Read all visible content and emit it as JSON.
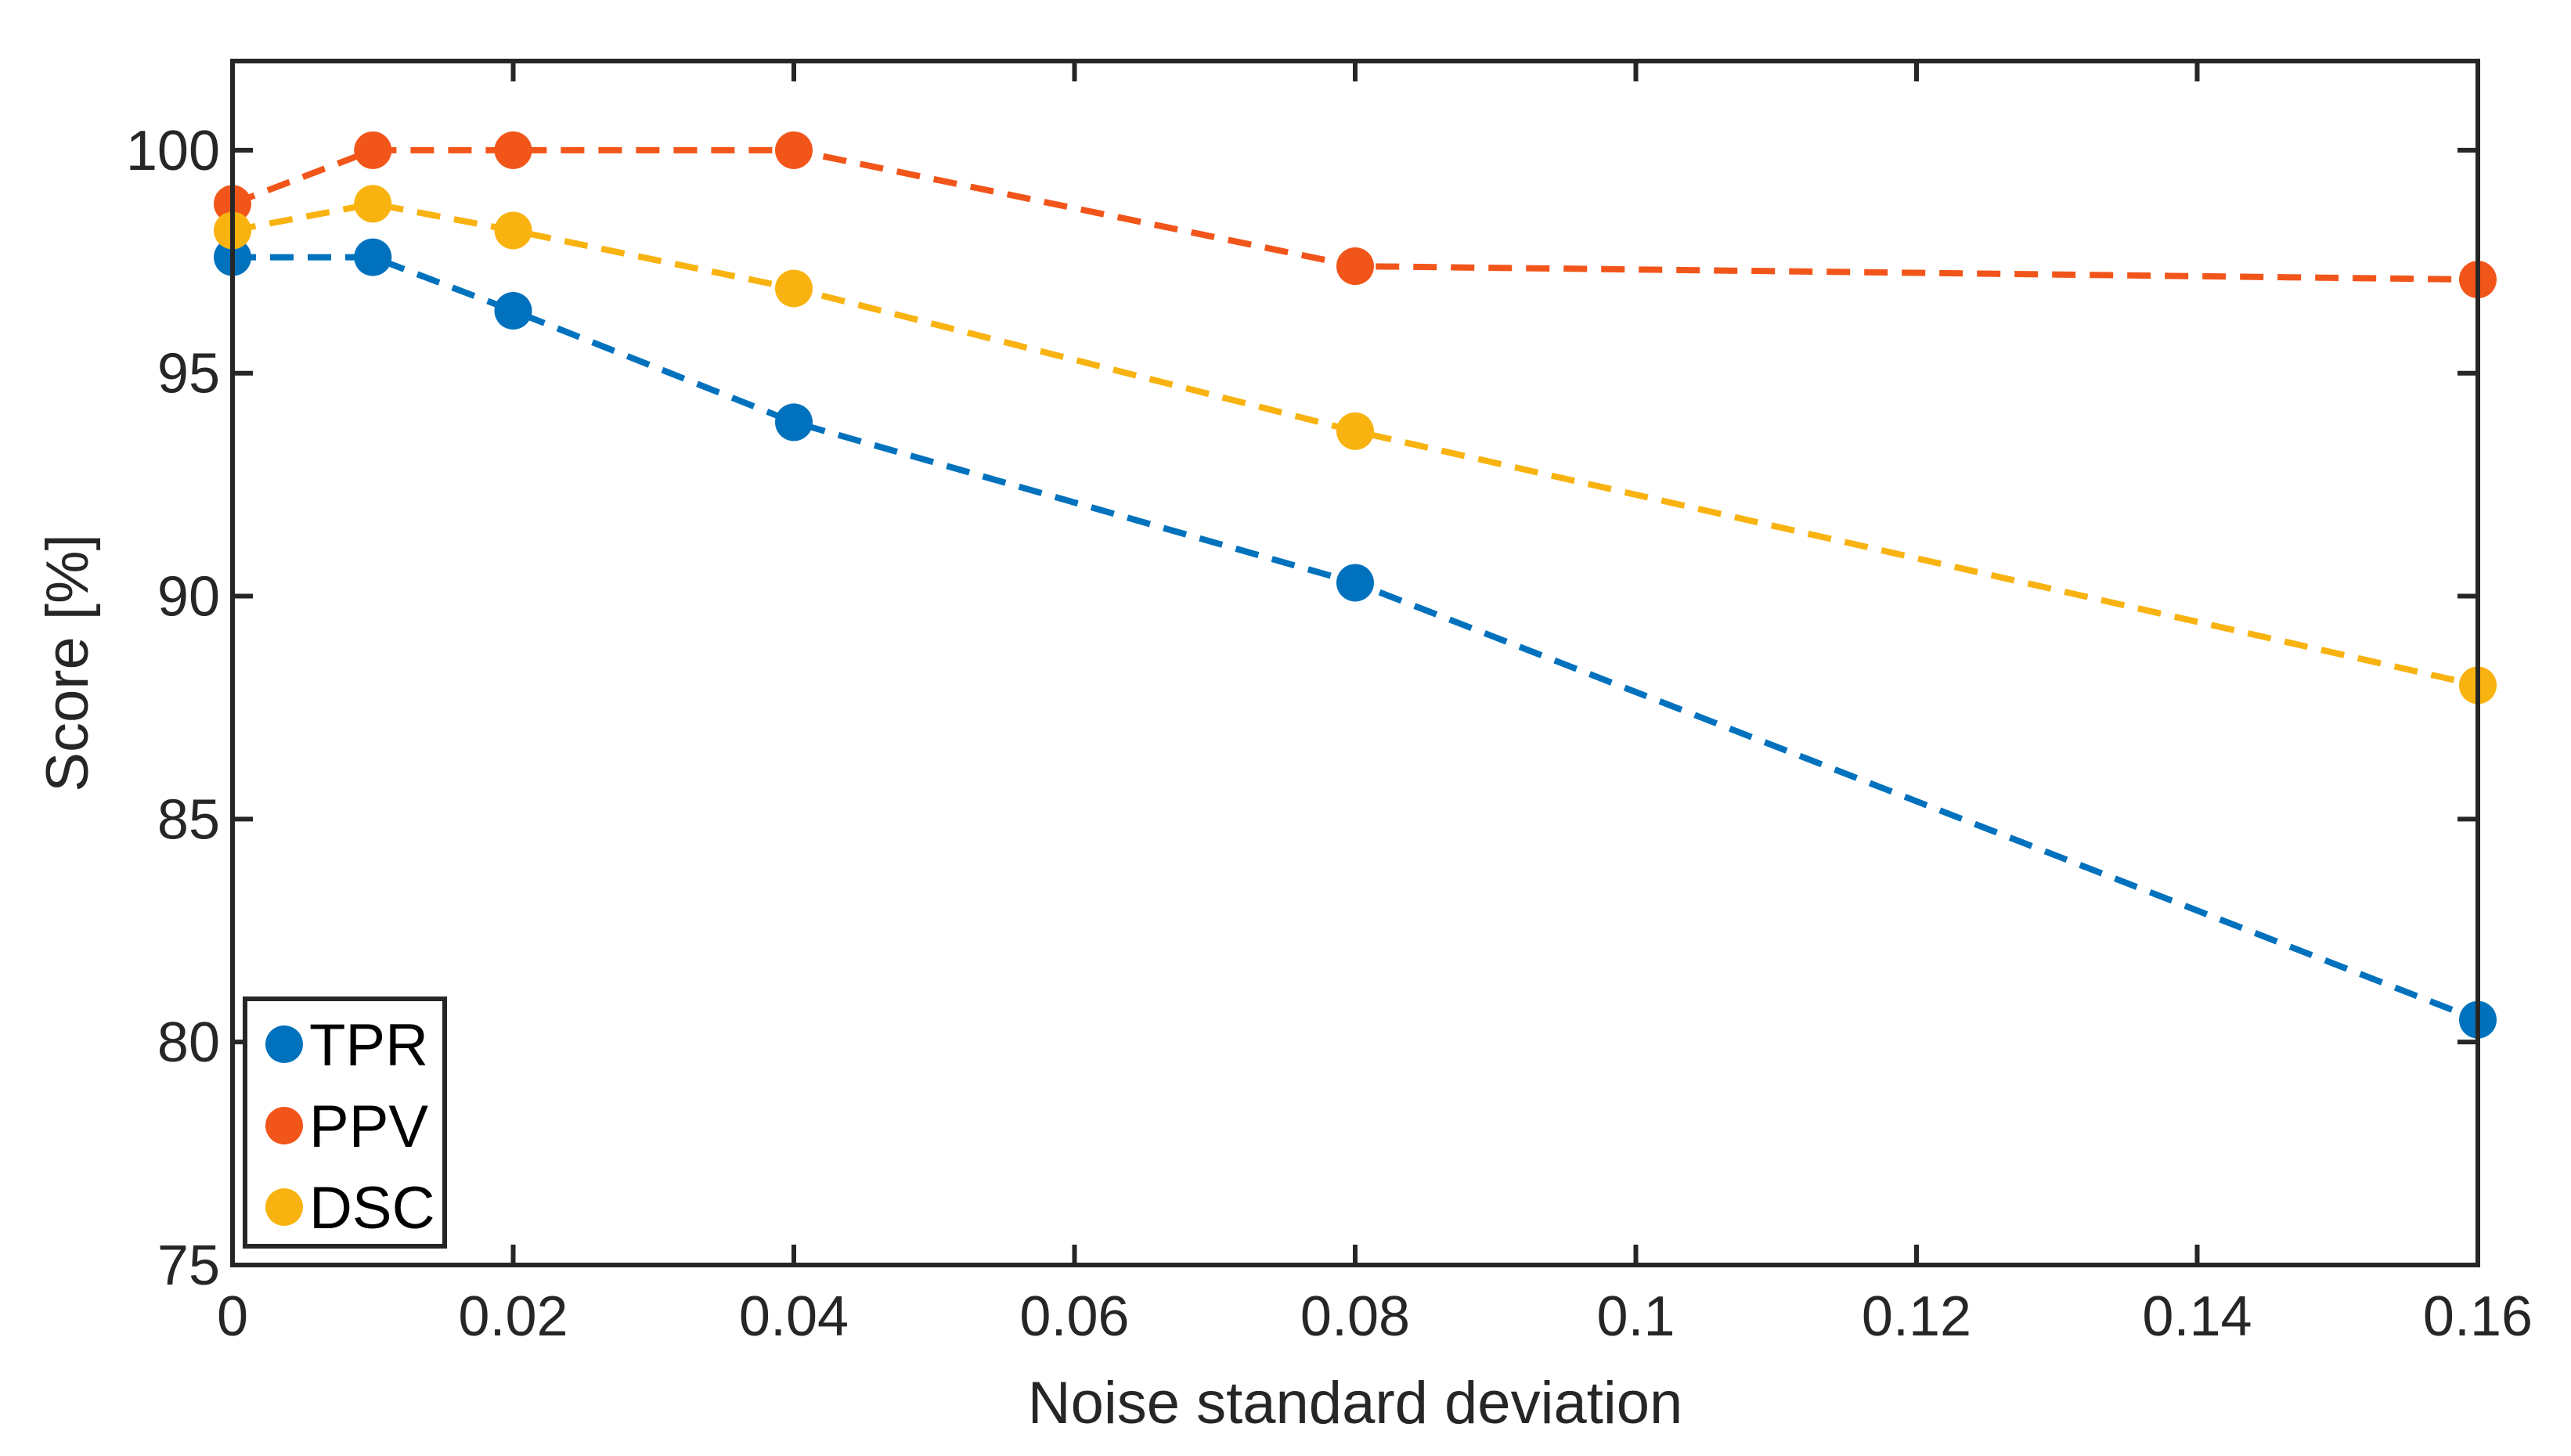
{
  "chart_data": {
    "type": "line",
    "title": "",
    "xlabel": "Noise standard deviation",
    "ylabel": "Score [%]",
    "xlim": [
      0,
      0.16
    ],
    "ylim": [
      75,
      102
    ],
    "x_ticks": [
      0,
      0.02,
      0.04,
      0.06,
      0.08,
      0.1,
      0.12,
      0.14,
      0.16
    ],
    "x_tick_labels": [
      "0",
      "0.02",
      "0.04",
      "0.06",
      "0.08",
      "0.1",
      "0.12",
      "0.14",
      "0.16"
    ],
    "y_ticks": [
      75,
      80,
      85,
      90,
      95,
      100
    ],
    "y_tick_labels": [
      "75",
      "80",
      "85",
      "90",
      "95",
      "100"
    ],
    "grid": false,
    "legend_position": "bottom-left",
    "x": [
      0,
      0.01,
      0.02,
      0.04,
      0.08,
      0.16
    ],
    "series": [
      {
        "name": "TPR",
        "color": "#0072BD",
        "values": [
          97.6,
          97.6,
          96.4,
          93.9,
          90.3,
          80.5
        ]
      },
      {
        "name": "PPV",
        "color": "#F2551A",
        "values": [
          98.8,
          100.0,
          100.0,
          100.0,
          97.4,
          97.1
        ]
      },
      {
        "name": "DSC",
        "color": "#F9B310",
        "values": [
          98.2,
          98.8,
          98.2,
          96.9,
          93.7,
          88.0
        ]
      }
    ]
  }
}
